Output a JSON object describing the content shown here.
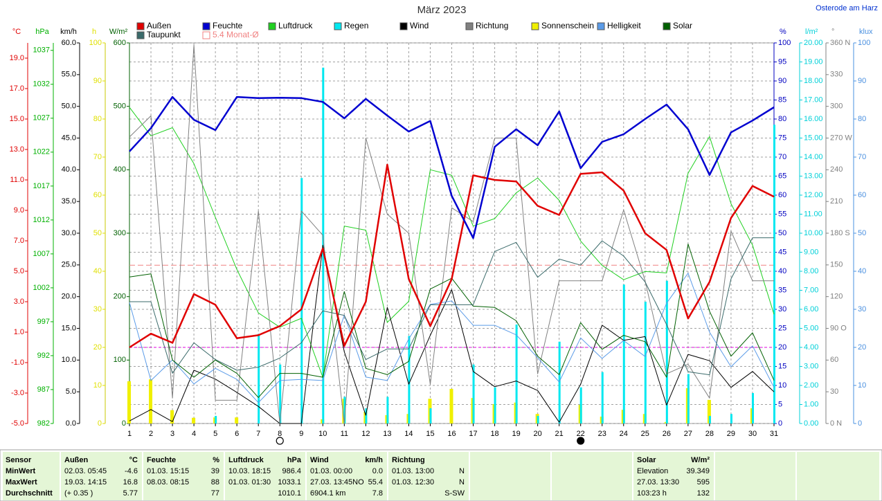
{
  "chart_data": {
    "type": "line",
    "title": "März 2023",
    "location": "Osterode am Harz",
    "x": [
      1,
      2,
      3,
      4,
      5,
      6,
      7,
      8,
      9,
      10,
      11,
      12,
      13,
      14,
      15,
      16,
      17,
      18,
      19,
      20,
      21,
      22,
      23,
      24,
      25,
      26,
      27,
      28,
      29,
      30,
      31
    ],
    "xlim": [
      1,
      31
    ],
    "xticks": [
      1,
      2,
      3,
      4,
      5,
      6,
      7,
      8,
      9,
      10,
      11,
      12,
      13,
      14,
      15,
      16,
      17,
      18,
      19,
      20,
      21,
      22,
      23,
      24,
      25,
      26,
      27,
      28,
      29,
      30,
      31
    ],
    "grid": true,
    "grid_axis": 5,
    "y_axes": [
      {
        "label": "°C",
        "color": "#e00000",
        "side": "left",
        "ylim": [
          -5,
          20
        ],
        "yticks": [
          {
            "value": -5,
            "label": "-5.0"
          },
          {
            "value": -3,
            "label": "-3.0"
          },
          {
            "value": -1,
            "label": "-1.0"
          },
          {
            "value": 1,
            "label": "1.0"
          },
          {
            "value": 3,
            "label": "3.0"
          },
          {
            "value": 5,
            "label": "5.0"
          },
          {
            "value": 7,
            "label": "7.0"
          },
          {
            "value": 9,
            "label": "9.0"
          },
          {
            "value": 11,
            "label": "11.0"
          },
          {
            "value": 13,
            "label": "13.0"
          },
          {
            "value": 15,
            "label": "15.0"
          },
          {
            "value": 17,
            "label": "17.0"
          },
          {
            "value": 19,
            "label": "19.0"
          }
        ]
      },
      {
        "label": "hPa",
        "color": "#00b000",
        "side": "left",
        "ylim": [
          982,
          1038.1
        ],
        "yticks": [
          982,
          987,
          992,
          997,
          1002,
          1007,
          1012,
          1017,
          1022,
          1027,
          1032,
          1037
        ]
      },
      {
        "label": "km/h",
        "color": "#000000",
        "side": "left",
        "ylim": [
          0,
          60
        ],
        "yticks": [
          {
            "value": 0,
            "label": "0.0"
          },
          {
            "value": 5,
            "label": "5.0"
          },
          {
            "value": 10,
            "label": "10.0"
          },
          {
            "value": 15,
            "label": "15.0"
          },
          {
            "value": 20,
            "label": "20.0"
          },
          {
            "value": 25,
            "label": "25.0"
          },
          {
            "value": 30,
            "label": "30.0"
          },
          {
            "value": 35,
            "label": "35.0"
          },
          {
            "value": 40,
            "label": "40.0"
          },
          {
            "value": 45,
            "label": "45.0"
          },
          {
            "value": 50,
            "label": "50.0"
          },
          {
            "value": 55,
            "label": "55.0"
          },
          {
            "value": 60,
            "label": "60.0"
          }
        ]
      },
      {
        "label": "h",
        "color": "#e0e000",
        "side": "left",
        "ylim": [
          0,
          100
        ],
        "yticks": [
          0,
          10,
          20,
          30,
          40,
          50,
          60,
          70,
          80,
          90,
          100
        ]
      },
      {
        "label": "W/m²",
        "color": "#006000",
        "side": "left",
        "ylim": [
          0,
          600
        ],
        "yticks": [
          0,
          100,
          200,
          300,
          400,
          500,
          600
        ]
      },
      {
        "label": "%",
        "color": "#0000c0",
        "side": "right",
        "ylim": [
          0,
          100
        ],
        "yticks": [
          0,
          5,
          10,
          15,
          20,
          25,
          30,
          35,
          40,
          45,
          50,
          55,
          60,
          65,
          70,
          75,
          80,
          85,
          90,
          95,
          100
        ]
      },
      {
        "label": "l/m²",
        "color": "#00d0d8",
        "side": "right",
        "ylim": [
          0,
          20
        ],
        "yticks": [
          {
            "value": 0,
            "label": "0.00"
          },
          {
            "value": 1,
            "label": "1.00"
          },
          {
            "value": 2,
            "label": "2.00"
          },
          {
            "value": 3,
            "label": "3.00"
          },
          {
            "value": 4,
            "label": "4.00"
          },
          {
            "value": 5,
            "label": "5.00"
          },
          {
            "value": 6,
            "label": "6.00"
          },
          {
            "value": 7,
            "label": "7.00"
          },
          {
            "value": 8,
            "label": "8.00"
          },
          {
            "value": 9,
            "label": "9.00"
          },
          {
            "value": 10,
            "label": "10.00"
          },
          {
            "value": 11,
            "label": "11.00"
          },
          {
            "value": 12,
            "label": "12.00"
          },
          {
            "value": 13,
            "label": "13.00"
          },
          {
            "value": 14,
            "label": "14.00"
          },
          {
            "value": 15,
            "label": "15.00"
          },
          {
            "value": 16,
            "label": "16.00"
          },
          {
            "value": 17,
            "label": "17.00"
          },
          {
            "value": 18,
            "label": "18.00"
          },
          {
            "value": 19,
            "label": "19.00"
          },
          {
            "value": 20,
            "label": "20.00"
          }
        ]
      },
      {
        "label": "°",
        "color": "#808080",
        "side": "right",
        "ylim": [
          0,
          360
        ],
        "yticks": [
          {
            "value": 0,
            "label": "0 N"
          },
          30,
          60,
          {
            "value": 90,
            "label": "90 O"
          },
          120,
          150,
          {
            "value": 180,
            "label": "180 S"
          },
          210,
          240,
          {
            "value": 270,
            "label": "270 W"
          },
          300,
          330,
          {
            "value": 360,
            "label": "360 N"
          }
        ]
      },
      {
        "label": "klux",
        "color": "#4a90e0",
        "side": "right",
        "ylim": [
          0,
          100
        ],
        "yticks": [
          0,
          10,
          20,
          30,
          40,
          50,
          60,
          70,
          80,
          90,
          100
        ]
      }
    ],
    "series": [
      {
        "name": "Außen",
        "color": "#e00000",
        "axis": 0,
        "line_width": 2.5,
        "values": [
          0.0,
          0.9,
          0.3,
          3.5,
          2.8,
          0.6,
          0.8,
          1.4,
          2.5,
          6.5,
          0.1,
          3.0,
          12.0,
          4.5,
          1.4,
          4.5,
          11.3,
          11.0,
          10.9,
          9.3,
          8.7,
          11.4,
          11.5,
          10.3,
          7.5,
          6.4,
          1.9,
          4.3,
          8.5,
          10.6,
          9.9
        ]
      },
      {
        "name": "Feuchte",
        "color": "#0000d0",
        "axis": 5,
        "line_width": 2.5,
        "values": [
          71.5,
          77.6,
          85.8,
          79.8,
          77.1,
          85.8,
          85.5,
          85.6,
          85.5,
          84.5,
          80.2,
          85.3,
          80.9,
          76.7,
          79.5,
          59.8,
          48.7,
          72.7,
          77.3,
          73.1,
          82.0,
          67.1,
          74.0,
          76.0,
          80.0,
          83.8,
          77.3,
          65.3,
          76.5,
          79.6,
          83.1
        ]
      },
      {
        "name": "Luftdruck",
        "color": "#20d020",
        "axis": 1,
        "values": [
          1028.6,
          1024.4,
          1025.6,
          1020.3,
          1012.4,
          1004.7,
          998.3,
          996.2,
          997.5,
          988.8,
          1011.1,
          1010.5,
          996.9,
          1000.0,
          1019.4,
          1018.6,
          1011.1,
          1012.2,
          1016.0,
          1018.2,
          1014.9,
          1008.9,
          1005.3,
          1003.2,
          1004.4,
          1004.2,
          1018.9,
          1024.3,
          1014.4,
          1008.3,
          998.1
        ]
      },
      {
        "name": "Regen",
        "color": "#00e8f0",
        "axis": 6,
        "kind": "bar",
        "values": [
          0,
          0,
          0,
          0,
          0.4,
          0,
          4.7,
          3.1,
          12.9,
          18.7,
          1.4,
          0.8,
          1.4,
          4.6,
          0.8,
          0,
          3.1,
          1.9,
          5.2,
          0.4,
          4.3,
          1.9,
          2.7,
          7.3,
          6.4,
          7.5,
          2.6,
          0.4,
          0.5,
          1.6,
          15.7
        ]
      },
      {
        "name": "Wind",
        "color": "#000000",
        "axis": 2,
        "values": [
          0.4,
          2.2,
          0.3,
          8.4,
          7.0,
          4.9,
          2.7,
          0,
          0,
          28.1,
          11.3,
          1.3,
          18.3,
          6.2,
          13.9,
          21.1,
          8.2,
          5.8,
          6.7,
          5.2,
          0.2,
          6.2,
          15.5,
          13.1,
          13.7,
          2.9,
          10.9,
          9.9,
          5.7,
          8.2,
          5.0
        ]
      },
      {
        "name": "Richtung",
        "color": "#808080",
        "axis": 7,
        "values": [
          271,
          291,
          24,
          358,
          22,
          22,
          201,
          0,
          201,
          178,
          0,
          270,
          198,
          180,
          37,
          204,
          191,
          270,
          270,
          47,
          135,
          135,
          135,
          202,
          135,
          47,
          56,
          24,
          182,
          135,
          135
        ]
      },
      {
        "name": "Sonnenschein",
        "color": "#f0f000",
        "axis": 3,
        "kind": "bar",
        "values": [
          11.1,
          11.6,
          3.5,
          1.5,
          1.6,
          1.6,
          0,
          0,
          0,
          1.1,
          6.5,
          3.1,
          2.2,
          2.5,
          6.5,
          9.1,
          6.7,
          5.1,
          5.5,
          2.5,
          0,
          4.9,
          1.8,
          3.6,
          2.5,
          0.4,
          9.3,
          6.2,
          0,
          4.0,
          0
        ]
      },
      {
        "name": "Helligkeit",
        "color": "#5a9be8",
        "axis": 8,
        "values": [
          31.8,
          11.3,
          16.7,
          10.4,
          14.5,
          11.6,
          5.5,
          11.3,
          11.6,
          11.3,
          28.5,
          12.2,
          11.3,
          22.2,
          31.3,
          32.2,
          25.8,
          25.8,
          23.3,
          17.3,
          10.9,
          22.5,
          17.1,
          21.8,
          17.6,
          31.6,
          39.5,
          24.0,
          14.9,
          20.4,
          9.5
        ]
      },
      {
        "name": "Solar",
        "color": "#006000",
        "axis": 4,
        "values": [
          231,
          236,
          100,
          73,
          100,
          79,
          41,
          79,
          79,
          73,
          208,
          87,
          77,
          98,
          212,
          229,
          185,
          183,
          162,
          106,
          77,
          159,
          117,
          139,
          129,
          73,
          283,
          177,
          106,
          143,
          68
        ]
      },
      {
        "name": "Taupunkt",
        "color": "#3a6a6a",
        "axis": 0,
        "values": [
          3.0,
          3.0,
          -1.7,
          0.3,
          -0.8,
          -1.5,
          -1.3,
          -0.7,
          0.3,
          2.4,
          2.1,
          -0.8,
          -0.1,
          -0.1,
          2.8,
          2.8,
          2.8,
          6.3,
          6.9,
          4.6,
          5.8,
          5.4,
          7.0,
          6.0,
          4.3,
          1.5,
          -1.6,
          -1.8,
          4.5,
          7.2,
          7.2
        ]
      }
    ],
    "reference": {
      "value": 5.4,
      "label": "5.4 Monat-Ø",
      "color": "#f08080",
      "axis": 0
    },
    "frost_line": 0,
    "moon_phases": [
      {
        "x": 8,
        "phase": "full"
      },
      {
        "x": 22,
        "phase": "new"
      }
    ]
  },
  "table": {
    "row_labels": {
      "header": "Sensor",
      "rows": [
        "MinWert",
        "MaxWert",
        "Durchschnitt"
      ]
    },
    "columns": [
      {
        "header": "Außen",
        "unit": "°C",
        "rows": [
          [
            "02.03. 05:45",
            "-4.6"
          ],
          [
            "19.03. 14:15",
            "16.8"
          ],
          [
            "(+ 0.35 )",
            "5.77"
          ]
        ]
      },
      {
        "header": "Feuchte",
        "unit": "%",
        "rows": [
          [
            "01.03. 15:15",
            "39"
          ],
          [
            "08.03. 08:15",
            "88"
          ],
          [
            "77"
          ]
        ]
      },
      {
        "header": "Luftdruck",
        "unit": "hPa",
        "rows": [
          [
            "10.03. 18:15",
            "986.4"
          ],
          [
            "01.03. 01:30",
            "1033.1"
          ],
          [
            "1010.1"
          ]
        ]
      },
      {
        "header": "Wind",
        "unit": "km/h",
        "rows": [
          [
            "01.03. 00:00",
            "0.0"
          ],
          [
            "27.03. 13:45NO",
            "55.4"
          ],
          [
            "6904.1 km",
            "7.8"
          ]
        ]
      },
      {
        "header": "Richtung",
        "rows": [
          [
            "01.03. 13:00",
            "N"
          ],
          [
            "01.03. 12:30",
            "N"
          ],
          [
            "S-SW"
          ]
        ]
      },
      {
        "header": "Solar",
        "unit": "W/m²",
        "rows": [
          [
            "Elevation",
            "39.349"
          ],
          [
            "27.03. 13:30",
            "595"
          ],
          [
            "103:23 h",
            "132"
          ]
        ]
      }
    ]
  }
}
